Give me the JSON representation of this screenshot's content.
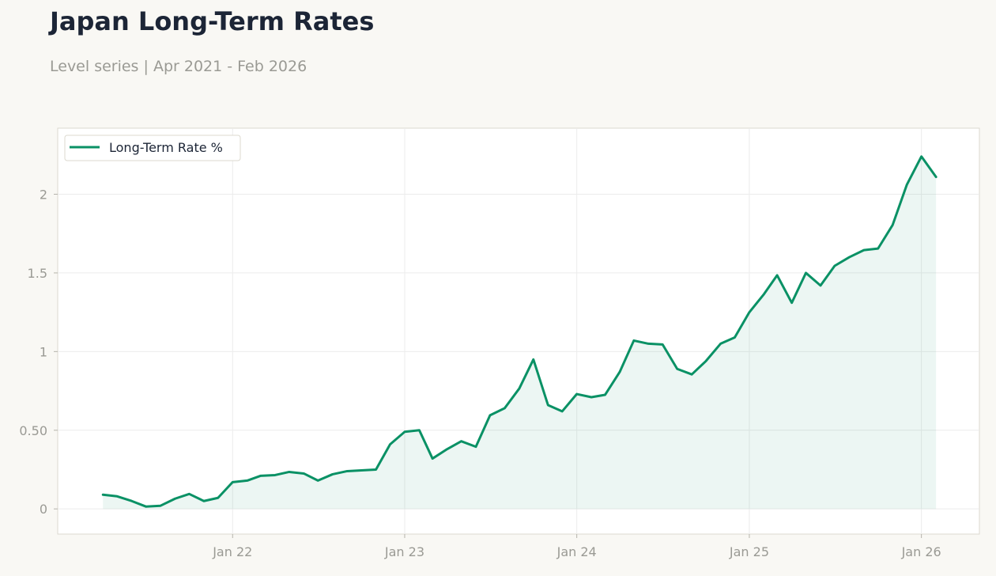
{
  "header": {
    "title": "Japan Long-Term Rates",
    "subtitle": "Level series | Apr 2021 - Feb 2026"
  },
  "colors": {
    "line": "#0a9165",
    "fill": "#0a9165",
    "grid": "#ececec",
    "frame": "#dcd9cf",
    "tick_text": "#9a9a94"
  },
  "chart_data": {
    "type": "area",
    "x_start": "2021-04",
    "x_step": "month",
    "x": [
      "2021-04",
      "2021-05",
      "2021-06",
      "2021-07",
      "2021-08",
      "2021-09",
      "2021-10",
      "2021-11",
      "2021-12",
      "2022-01",
      "2022-02",
      "2022-03",
      "2022-04",
      "2022-05",
      "2022-06",
      "2022-07",
      "2022-08",
      "2022-09",
      "2022-10",
      "2022-11",
      "2022-12",
      "2023-01",
      "2023-02",
      "2023-03",
      "2023-04",
      "2023-05",
      "2023-06",
      "2023-07",
      "2023-08",
      "2023-09",
      "2023-10",
      "2023-11",
      "2023-12",
      "2024-01",
      "2024-02",
      "2024-03",
      "2024-04",
      "2024-05",
      "2024-06",
      "2024-07",
      "2024-08",
      "2024-09",
      "2024-10",
      "2024-11",
      "2024-12",
      "2025-01",
      "2025-02",
      "2025-03",
      "2025-04",
      "2025-05",
      "2025-06",
      "2025-07",
      "2025-08",
      "2025-09",
      "2025-10",
      "2025-11",
      "2025-12",
      "2026-01",
      "2026-02"
    ],
    "series": [
      {
        "name": "Long-Term Rate %",
        "values": [
          0.09,
          0.08,
          0.05,
          0.015,
          0.02,
          0.065,
          0.095,
          0.05,
          0.07,
          0.17,
          0.18,
          0.21,
          0.215,
          0.235,
          0.225,
          0.18,
          0.22,
          0.24,
          0.245,
          0.25,
          0.41,
          0.49,
          0.5,
          0.32,
          0.38,
          0.43,
          0.395,
          0.595,
          0.64,
          0.765,
          0.95,
          0.66,
          0.62,
          0.73,
          0.71,
          0.725,
          0.87,
          1.07,
          1.05,
          1.045,
          0.89,
          0.855,
          0.94,
          1.05,
          1.09,
          1.25,
          1.365,
          1.485,
          1.31,
          1.5,
          1.42,
          1.545,
          1.6,
          1.645,
          1.655,
          1.805,
          2.06,
          2.24,
          2.11
        ]
      }
    ],
    "xticks": [
      {
        "date": "2022-01",
        "label": "Jan 22"
      },
      {
        "date": "2023-01",
        "label": "Jan 23"
      },
      {
        "date": "2024-01",
        "label": "Jan 24"
      },
      {
        "date": "2025-01",
        "label": "Jan 25"
      },
      {
        "date": "2026-01",
        "label": "Jan 26"
      }
    ],
    "yticks": [
      {
        "value": 0,
        "label": "0"
      },
      {
        "value": 0.5,
        "label": "0.50"
      },
      {
        "value": 1,
        "label": "1"
      },
      {
        "value": 1.5,
        "label": "1.5"
      },
      {
        "value": 2,
        "label": "2"
      }
    ],
    "ylim": [
      -0.16,
      2.42
    ],
    "xlim": [
      "2020-12-26",
      "2026-05-04"
    ],
    "grid": true,
    "legend": "top-left"
  }
}
